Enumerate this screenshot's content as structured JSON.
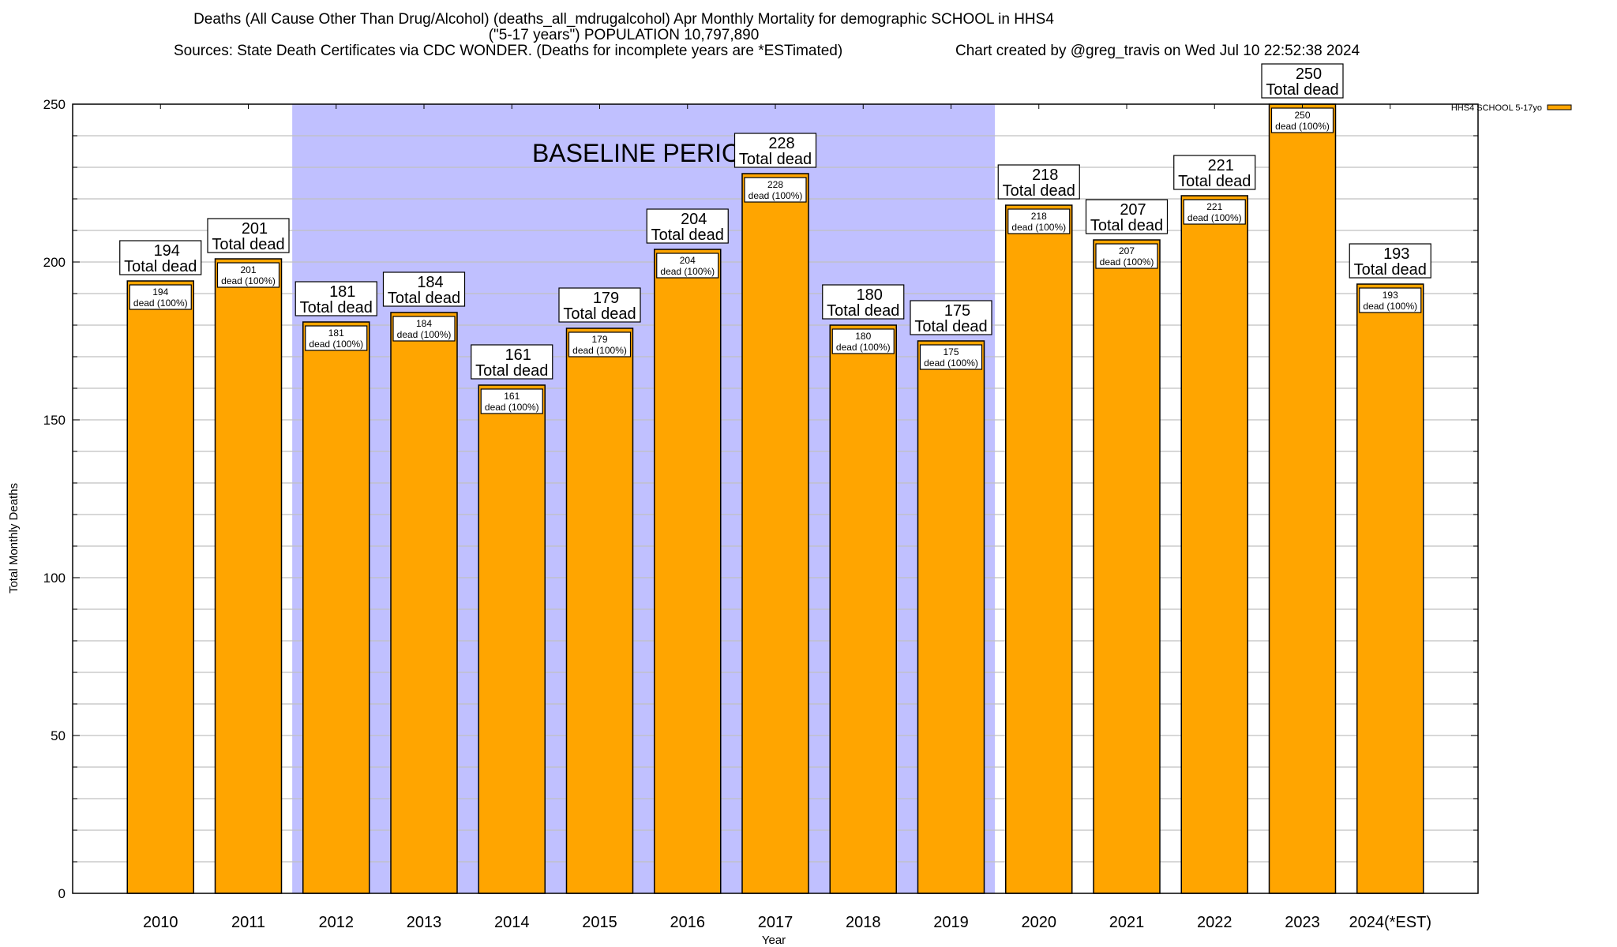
{
  "chart_data": {
    "type": "bar",
    "title_lines": [
      "Deaths (All Cause Other Than Drug/Alcohol) (deaths_all_mdrugalcohol) Apr Monthly Mortality for demographic SCHOOL in HHS4",
      "(\"5-17 years\") POPULATION 10,797,890"
    ],
    "sources": "Sources: State Death Certificates via CDC WONDER. (Deaths for incomplete years are *ESTimated)",
    "credit": "Chart created by @greg_travis on Wed Jul 10 22:52:38 2024",
    "xlabel": "Year",
    "ylabel": "Total Monthly Deaths",
    "ylim": [
      0,
      250
    ],
    "yticks": [
      0,
      50,
      100,
      150,
      200,
      250
    ],
    "minor_grid_step": 10,
    "grid": true,
    "categories": [
      "2010",
      "2011",
      "2012",
      "2013",
      "2014",
      "2015",
      "2016",
      "2017",
      "2018",
      "2019",
      "2020",
      "2021",
      "2022",
      "2023",
      "2024(*EST)"
    ],
    "series": [
      {
        "name": "HHS4 SCHOOL 5-17yo",
        "color": "#ffa500",
        "values": [
          194,
          201,
          181,
          184,
          161,
          179,
          204,
          228,
          180,
          175,
          218,
          207,
          221,
          250,
          193
        ]
      }
    ],
    "total_label_suffix": "Total dead",
    "inner_label_suffix": "dead (100%)",
    "baseline": {
      "label": "BASELINE PERIOD",
      "from_category": "2012",
      "to_category": "2019",
      "color": "#c0c0ff"
    },
    "legend": {
      "position": "top-right-outside",
      "entries": [
        "HHS4 SCHOOL 5-17yo"
      ]
    }
  }
}
